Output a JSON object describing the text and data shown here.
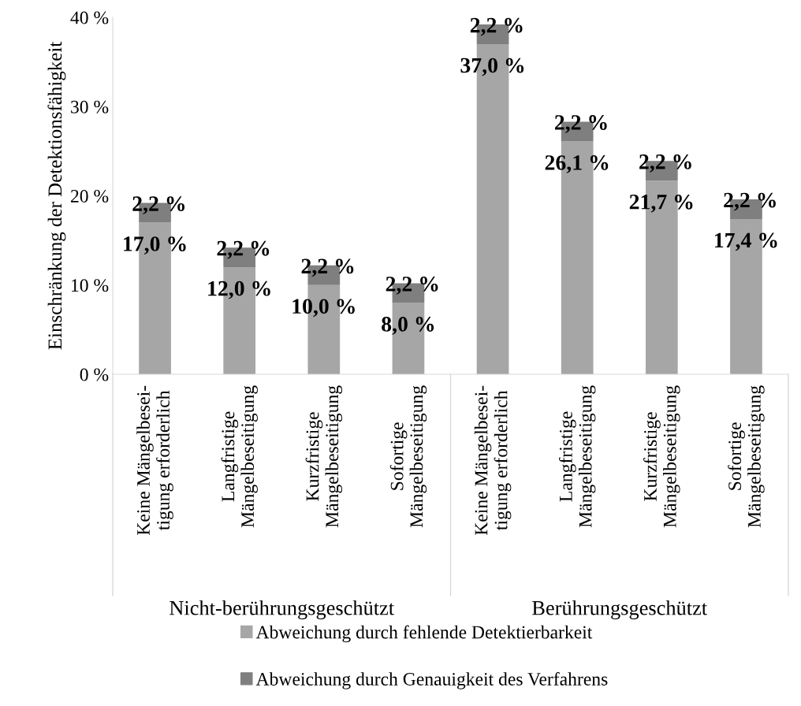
{
  "chart_data": {
    "type": "bar",
    "stacked": true,
    "ylabel": "Einschränkung der Detektionsfähigkeit",
    "categories": [
      "Keine Mängelbesei-\ntigung erforderlich",
      "Langfristige\nMängelbeseitigung",
      "Kurzfristige\nMängelbeseitigung",
      "Sofortige\nMängelbeseitigung",
      "Keine Mängelbesei-\ntigung erforderlich",
      "Langfristige\nMängelbeseitigung",
      "Kurzfristige\nMängelbeseitigung",
      "Sofortige\nMängelbeseitigung"
    ],
    "series": [
      {
        "name": "Abweichung durch fehlende Detektierbarkeit",
        "color": "#a6a6a6",
        "values": [
          17.0,
          12.0,
          10.0,
          8.0,
          37.0,
          26.1,
          21.7,
          17.4
        ],
        "value_labels": [
          "17,0 %",
          "12,0 %",
          "10,0 %",
          "8,0 %",
          "37,0 %",
          "26,1 %",
          "21,7 %",
          "17,4 %"
        ]
      },
      {
        "name": "Abweichung durch Genauigkeit des Verfahrens",
        "color": "#7f7f7f",
        "values": [
          2.2,
          2.2,
          2.2,
          2.2,
          2.2,
          2.2,
          2.2,
          2.2
        ],
        "value_labels": [
          "2,2 %",
          "2,2 %",
          "2,2 %",
          "2,2 %",
          "2,2 %",
          "2,2 %",
          "2,2 %",
          "2,2 %"
        ]
      }
    ],
    "annotations": [
      "Nicht-berührungsgeschützt",
      "Berührungsgeschützt"
    ],
    "ylim": [
      0,
      40
    ],
    "yticks": [
      {
        "value": 0,
        "label": "0 %"
      },
      {
        "value": 10,
        "label": "10 %"
      },
      {
        "value": 20,
        "label": "20 %"
      },
      {
        "value": 30,
        "label": "30 %"
      },
      {
        "value": 40,
        "label": "40 %"
      }
    ],
    "grid": false,
    "legend": "bottom"
  }
}
